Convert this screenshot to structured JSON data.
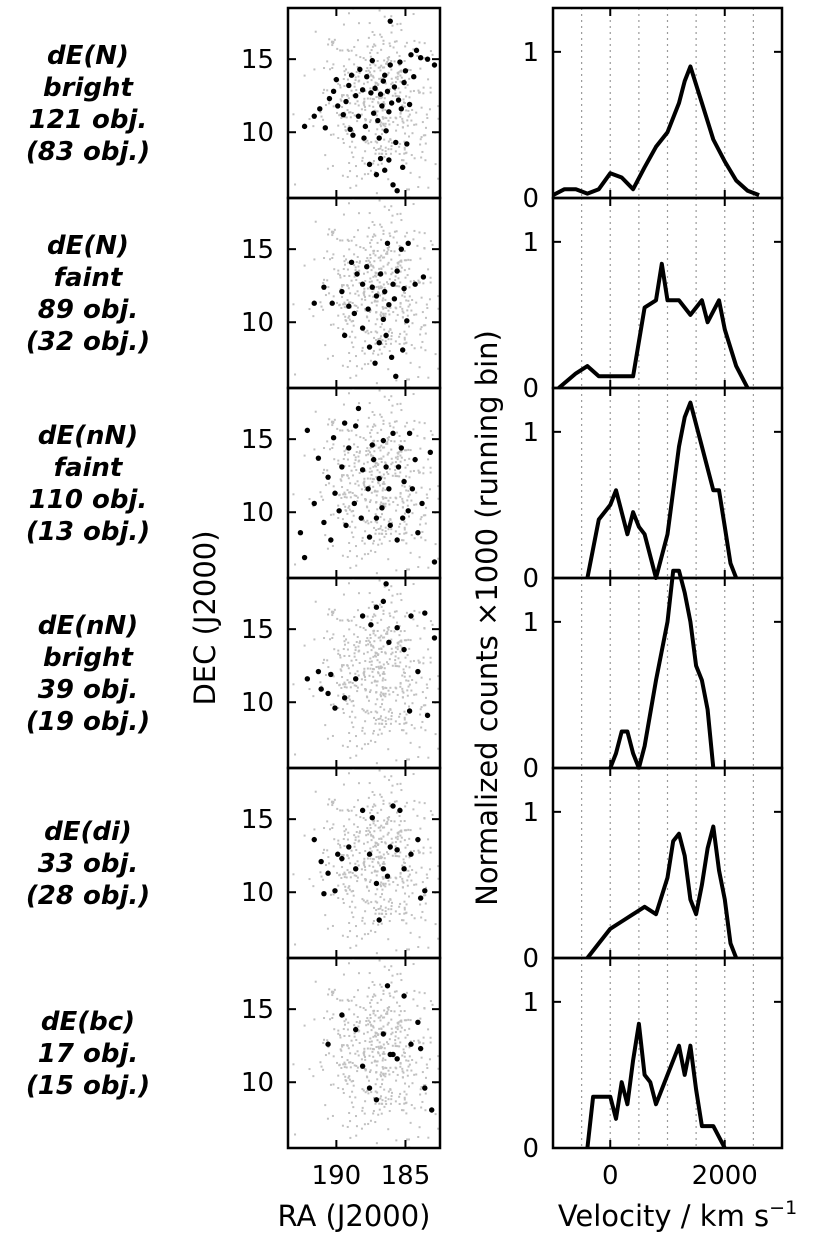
{
  "figure": {
    "radec_xlabel": "RA (J2000)",
    "radec_ylabel": "DEC (J2000)",
    "vel_xlabel": "Velocity / km s",
    "vel_xlabel_sup": "−1",
    "vel_ylabel": "Normalized counts ×1000 (running bin)",
    "ra_range": [
      193.5,
      182.5
    ],
    "dec_range": [
      5.5,
      18.5
    ],
    "vel_range": [
      -1000,
      3000
    ],
    "count_range": [
      0,
      1.3
    ],
    "ra_ticks": [
      "190",
      "185"
    ],
    "ra_tick_values": [
      190,
      185
    ],
    "dec_ticks": [
      "15",
      "10"
    ],
    "dec_tick_values": [
      15,
      10
    ],
    "vel_ticks": [
      "0",
      "2000"
    ],
    "vel_tick_values": [
      0,
      2000
    ],
    "count_ticks": [
      "0",
      "1"
    ],
    "count_tick_values": [
      0,
      1
    ],
    "background_color": "#c0c0c0",
    "highlight_color": "#000000",
    "velocity_grid_values": [
      -500,
      0,
      500,
      1000,
      1500,
      2000,
      2500
    ]
  },
  "chart_data": [
    {
      "type": "scatter",
      "panel": "dE(N) bright",
      "labels": [
        "dE(N)",
        "bright",
        "121 obj.",
        "(83 obj.)"
      ],
      "points": [
        [
          191.2,
          11.6
        ],
        [
          190.5,
          12.3
        ],
        [
          189.9,
          11.8
        ],
        [
          189.1,
          13.2
        ],
        [
          188.6,
          12.5
        ],
        [
          188.3,
          14.3
        ],
        [
          187.8,
          13.8
        ],
        [
          187.5,
          12.7
        ],
        [
          187.3,
          11.3
        ],
        [
          187.0,
          10.8
        ],
        [
          186.8,
          12.6
        ],
        [
          186.6,
          13.5
        ],
        [
          186.3,
          12.8
        ],
        [
          186.1,
          14.6
        ],
        [
          185.8,
          13.1
        ],
        [
          185.5,
          12.2
        ],
        [
          185.3,
          11.6
        ],
        [
          185.0,
          14.2
        ],
        [
          184.6,
          15.3
        ],
        [
          184.2,
          15.6
        ],
        [
          183.9,
          15.1
        ],
        [
          183.4,
          15.0
        ],
        [
          182.9,
          14.6
        ],
        [
          190.8,
          10.3
        ],
        [
          190.2,
          12.8
        ],
        [
          189.5,
          11.2
        ],
        [
          189.0,
          10.2
        ],
        [
          188.4,
          11.1
        ],
        [
          188.0,
          9.6
        ],
        [
          187.6,
          7.8
        ],
        [
          187.1,
          7.1
        ],
        [
          186.8,
          8.2
        ],
        [
          186.5,
          7.4
        ],
        [
          186.2,
          8.1
        ],
        [
          185.9,
          6.4
        ],
        [
          185.6,
          6.0
        ],
        [
          186.9,
          9.6
        ],
        [
          186.4,
          10.1
        ],
        [
          185.7,
          9.3
        ],
        [
          192.3,
          10.4
        ],
        [
          191.6,
          11.1
        ],
        [
          190.0,
          13.6
        ],
        [
          188.9,
          13.9
        ],
        [
          188.1,
          12.9
        ],
        [
          187.4,
          14.9
        ],
        [
          186.7,
          11.8
        ],
        [
          186.0,
          12.0
        ],
        [
          185.1,
          13.4
        ],
        [
          184.4,
          13.8
        ],
        [
          184.9,
          9.2
        ],
        [
          185.2,
          7.6
        ],
        [
          189.3,
          12.1
        ],
        [
          188.8,
          9.8
        ],
        [
          187.9,
          10.4
        ],
        [
          187.2,
          13.0
        ],
        [
          186.5,
          13.9
        ],
        [
          186.2,
          11.4
        ],
        [
          185.4,
          14.8
        ],
        [
          184.7,
          11.9
        ],
        [
          186.1,
          17.6
        ]
      ]
    },
    {
      "type": "line",
      "panel": "dE(N) bright",
      "x": [
        -1000,
        -800,
        -600,
        -400,
        -200,
        0,
        200,
        400,
        600,
        800,
        1000,
        1200,
        1300,
        1400,
        1600,
        1800,
        2000,
        2200,
        2400,
        2600
      ],
      "y": [
        0.02,
        0.06,
        0.06,
        0.03,
        0.06,
        0.17,
        0.14,
        0.06,
        0.21,
        0.35,
        0.45,
        0.65,
        0.8,
        0.9,
        0.65,
        0.4,
        0.25,
        0.12,
        0.05,
        0.02
      ]
    },
    {
      "type": "scatter",
      "panel": "dE(N) faint",
      "labels": [
        "dE(N)",
        "faint",
        "89 obj.",
        "(32 obj.)"
      ],
      "points": [
        [
          190.3,
          11.3
        ],
        [
          189.6,
          12.1
        ],
        [
          189.1,
          11.1
        ],
        [
          188.5,
          13.3
        ],
        [
          188.1,
          12.6
        ],
        [
          187.8,
          13.8
        ],
        [
          187.4,
          12.4
        ],
        [
          187.1,
          11.8
        ],
        [
          186.8,
          13.3
        ],
        [
          186.5,
          12.1
        ],
        [
          186.2,
          11.2
        ],
        [
          185.9,
          12.6
        ],
        [
          185.6,
          13.5
        ],
        [
          185.3,
          15.0
        ],
        [
          184.8,
          15.4
        ],
        [
          184.3,
          12.6
        ],
        [
          183.7,
          13.1
        ],
        [
          189.4,
          9.1
        ],
        [
          188.7,
          10.6
        ],
        [
          188.1,
          9.6
        ],
        [
          187.6,
          8.3
        ],
        [
          187.2,
          7.2
        ],
        [
          186.9,
          8.6
        ],
        [
          186.4,
          9.1
        ],
        [
          186.0,
          7.6
        ],
        [
          185.7,
          6.3
        ],
        [
          185.2,
          8.1
        ],
        [
          184.9,
          10.1
        ],
        [
          191.6,
          11.3
        ],
        [
          190.9,
          12.4
        ],
        [
          188.9,
          14.1
        ],
        [
          187.7,
          10.9
        ],
        [
          186.6,
          10.2
        ],
        [
          185.8,
          11.6
        ],
        [
          185.1,
          12.3
        ],
        [
          186.3,
          15.4
        ]
      ]
    },
    {
      "type": "line",
      "panel": "dE(N) faint",
      "x": [
        -900,
        -600,
        -400,
        -200,
        0,
        200,
        400,
        600,
        800,
        900,
        1000,
        1200,
        1400,
        1600,
        1700,
        1900,
        2000,
        2200,
        2400
      ],
      "y": [
        0.0,
        0.1,
        0.15,
        0.08,
        0.08,
        0.08,
        0.08,
        0.55,
        0.6,
        0.85,
        0.6,
        0.6,
        0.5,
        0.6,
        0.45,
        0.6,
        0.4,
        0.15,
        0.0
      ]
    },
    {
      "type": "scatter",
      "panel": "dE(nN) faint",
      "labels": [
        "dE(nN)",
        "faint",
        "110 obj.",
        "(13 obj.)"
      ],
      "points": [
        [
          192.1,
          15.6
        ],
        [
          191.3,
          13.7
        ],
        [
          190.6,
          12.4
        ],
        [
          190.1,
          11.3
        ],
        [
          189.6,
          13.1
        ],
        [
          189.1,
          14.4
        ],
        [
          188.6,
          15.9
        ],
        [
          188.1,
          12.9
        ],
        [
          187.7,
          11.6
        ],
        [
          187.3,
          13.6
        ],
        [
          186.9,
          12.3
        ],
        [
          186.6,
          14.9
        ],
        [
          186.2,
          11.6
        ],
        [
          185.9,
          15.4
        ],
        [
          185.5,
          13.1
        ],
        [
          185.1,
          12.1
        ],
        [
          184.7,
          15.4
        ],
        [
          184.3,
          13.6
        ],
        [
          183.8,
          10.6
        ],
        [
          183.2,
          14.1
        ],
        [
          182.9,
          6.6
        ],
        [
          191.6,
          10.6
        ],
        [
          190.9,
          9.3
        ],
        [
          190.4,
          8.1
        ],
        [
          189.8,
          10.1
        ],
        [
          189.3,
          9.1
        ],
        [
          188.7,
          10.6
        ],
        [
          188.2,
          9.6
        ],
        [
          187.6,
          8.3
        ],
        [
          187.1,
          9.6
        ],
        [
          186.7,
          10.3
        ],
        [
          186.1,
          9.1
        ],
        [
          185.6,
          8.1
        ],
        [
          185.2,
          9.6
        ],
        [
          184.8,
          10.1
        ],
        [
          184.1,
          8.6
        ],
        [
          192.6,
          8.6
        ],
        [
          192.3,
          6.9
        ],
        [
          190.2,
          15.1
        ],
        [
          189.4,
          16.1
        ],
        [
          188.4,
          17.1
        ],
        [
          187.4,
          14.6
        ],
        [
          186.4,
          13.1
        ],
        [
          185.3,
          14.4
        ],
        [
          184.5,
          11.6
        ]
      ]
    },
    {
      "type": "line",
      "panel": "dE(nN) faint",
      "x": [
        -400,
        -200,
        0,
        100,
        200,
        300,
        400,
        500,
        600,
        800,
        1000,
        1200,
        1300,
        1400,
        1600,
        1800,
        1900,
        2000,
        2100,
        2200
      ],
      "y": [
        0.0,
        0.4,
        0.5,
        0.6,
        0.45,
        0.3,
        0.45,
        0.35,
        0.3,
        0.0,
        0.3,
        0.9,
        1.1,
        1.2,
        0.9,
        0.6,
        0.6,
        0.35,
        0.1,
        0.0
      ]
    },
    {
      "type": "scatter",
      "panel": "dE(nN) bright",
      "labels": [
        "dE(nN)",
        "bright",
        "39 obj.",
        "(19 obj.)"
      ],
      "points": [
        [
          192.1,
          11.6
        ],
        [
          191.3,
          12.1
        ],
        [
          190.6,
          10.6
        ],
        [
          190.1,
          9.6
        ],
        [
          189.4,
          10.3
        ],
        [
          188.6,
          11.6
        ],
        [
          188.1,
          15.9
        ],
        [
          187.5,
          15.3
        ],
        [
          187.1,
          16.5
        ],
        [
          186.6,
          16.9
        ],
        [
          186.2,
          14.1
        ],
        [
          185.6,
          15.1
        ],
        [
          185.1,
          13.6
        ],
        [
          184.6,
          15.9
        ],
        [
          184.1,
          12.1
        ],
        [
          183.6,
          16.1
        ],
        [
          182.9,
          14.4
        ],
        [
          183.4,
          9.1
        ],
        [
          184.7,
          9.4
        ],
        [
          186.4,
          18.1
        ],
        [
          191.1,
          10.9
        ],
        [
          190.4,
          11.9
        ]
      ]
    },
    {
      "type": "line",
      "panel": "dE(nN) bright",
      "x": [
        0,
        100,
        200,
        300,
        400,
        500,
        600,
        800,
        1000,
        1100,
        1200,
        1300,
        1400,
        1500,
        1600,
        1700,
        1800
      ],
      "y": [
        0.0,
        0.1,
        0.25,
        0.25,
        0.1,
        0.0,
        0.15,
        0.6,
        1.0,
        1.35,
        1.35,
        1.2,
        1.0,
        0.7,
        0.6,
        0.4,
        0.0
      ]
    },
    {
      "type": "scatter",
      "panel": "dE(di)",
      "labels": [
        "dE(di)",
        "33 obj.",
        "(28 obj.)"
      ],
      "points": [
        [
          191.6,
          13.6
        ],
        [
          191.1,
          12.1
        ],
        [
          190.6,
          11.3
        ],
        [
          190.1,
          10.1
        ],
        [
          189.6,
          12.3
        ],
        [
          189.1,
          13.1
        ],
        [
          188.6,
          11.6
        ],
        [
          188.1,
          15.6
        ],
        [
          187.6,
          12.6
        ],
        [
          187.1,
          10.6
        ],
        [
          186.6,
          11.6
        ],
        [
          186.1,
          13.1
        ],
        [
          185.6,
          12.9
        ],
        [
          185.1,
          11.6
        ],
        [
          184.6,
          12.6
        ],
        [
          184.1,
          13.6
        ],
        [
          183.6,
          10.1
        ],
        [
          185.9,
          15.9
        ],
        [
          187.4,
          15.1
        ],
        [
          186.9,
          8.1
        ],
        [
          183.9,
          9.6
        ],
        [
          190.9,
          9.9
        ],
        [
          189.9,
          12.6
        ],
        [
          185.4,
          15.6
        ],
        [
          186.3,
          11.1
        ]
      ]
    },
    {
      "type": "line",
      "panel": "dE(di)",
      "x": [
        -400,
        -200,
        0,
        200,
        400,
        600,
        800,
        1000,
        1100,
        1200,
        1300,
        1400,
        1500,
        1600,
        1700,
        1800,
        1900,
        2000,
        2100,
        2200
      ],
      "y": [
        0.0,
        0.1,
        0.2,
        0.25,
        0.3,
        0.35,
        0.3,
        0.55,
        0.8,
        0.85,
        0.7,
        0.4,
        0.3,
        0.5,
        0.75,
        0.9,
        0.6,
        0.4,
        0.1,
        0.0
      ]
    },
    {
      "type": "scatter",
      "panel": "dE(bc)",
      "labels": [
        "dE(bc)",
        "17 obj.",
        "(15 obj.)"
      ],
      "points": [
        [
          190.6,
          12.6
        ],
        [
          189.6,
          14.6
        ],
        [
          188.6,
          13.6
        ],
        [
          188.1,
          11.1
        ],
        [
          187.6,
          9.6
        ],
        [
          187.1,
          8.8
        ],
        [
          186.6,
          13.3
        ],
        [
          186.1,
          11.9
        ],
        [
          185.6,
          11.6
        ],
        [
          185.1,
          15.9
        ],
        [
          184.6,
          12.6
        ],
        [
          184.1,
          14.1
        ],
        [
          183.6,
          9.6
        ],
        [
          183.1,
          8.1
        ],
        [
          186.3,
          16.6
        ],
        [
          183.9,
          12.3
        ],
        [
          185.9,
          11.9
        ]
      ]
    },
    {
      "type": "line",
      "panel": "dE(bc)",
      "x": [
        -400,
        -300,
        0,
        100,
        200,
        300,
        400,
        500,
        600,
        700,
        800,
        1000,
        1200,
        1300,
        1400,
        1500,
        1600,
        1700,
        1800,
        2000
      ],
      "y": [
        0.0,
        0.35,
        0.35,
        0.2,
        0.45,
        0.3,
        0.6,
        0.85,
        0.5,
        0.45,
        0.3,
        0.5,
        0.7,
        0.5,
        0.7,
        0.4,
        0.15,
        0.15,
        0.15,
        0.0
      ]
    }
  ]
}
